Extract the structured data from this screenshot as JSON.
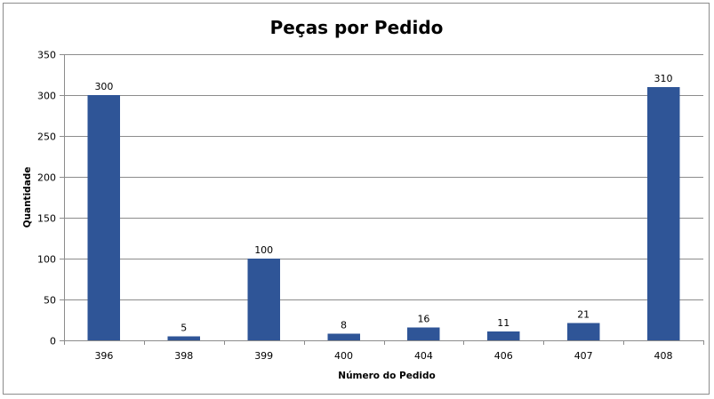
{
  "chart_data": {
    "type": "bar",
    "title": "Peças por Pedido",
    "xlabel": "Número do Pedido",
    "ylabel": "Quantidade",
    "categories": [
      "396",
      "398",
      "399",
      "400",
      "404",
      "406",
      "407",
      "408"
    ],
    "values": [
      300,
      5,
      100,
      8,
      16,
      11,
      21,
      310
    ],
    "ylim": [
      0,
      350
    ],
    "yticks": [
      0,
      50,
      100,
      150,
      200,
      250,
      300,
      350
    ],
    "grid": true,
    "legend": "none",
    "bar_color": "#2F5597"
  }
}
